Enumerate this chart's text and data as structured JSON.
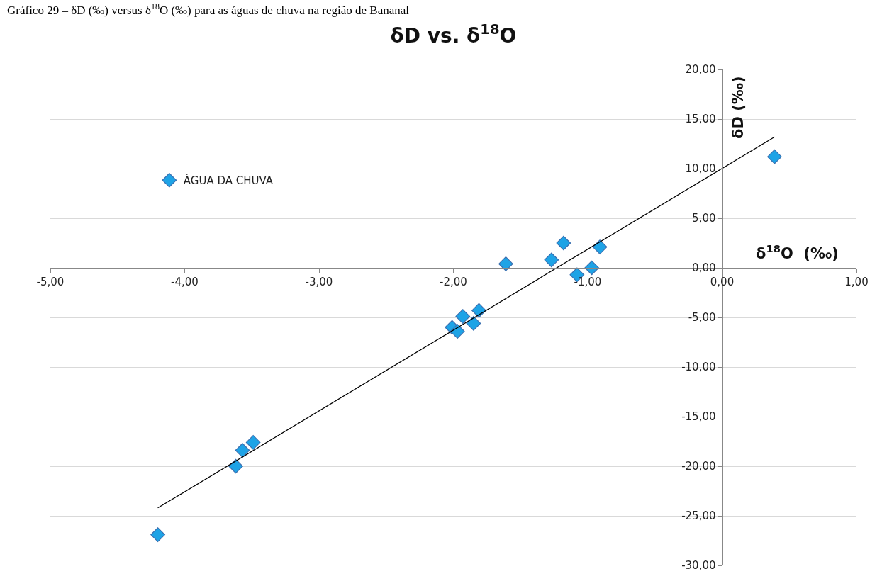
{
  "chart_data": {
    "type": "scatter",
    "title": "δD vs. δ$^{18}$O",
    "subtitle": "Gráfico 29 – δD (‰) versus δ$^{18}$O (‰) para as águas de chuva na região de Bananal",
    "xlabel": "δ$^{18}$O  (‰)",
    "ylabel": "δD (‰)",
    "xlim": [
      -5,
      1
    ],
    "xticks": [
      {
        "value": -5,
        "label": "-5,00"
      },
      {
        "value": -4,
        "label": "-4,00"
      },
      {
        "value": -3,
        "label": "-3,00"
      },
      {
        "value": -2,
        "label": "-2,00"
      },
      {
        "value": -1,
        "label": "-1,00"
      },
      {
        "value": 0,
        "label": "0,00"
      },
      {
        "value": 1,
        "label": "1,00"
      }
    ],
    "ylim": [
      -30,
      20
    ],
    "yticks": [
      {
        "value": -30,
        "label": "-30,00"
      },
      {
        "value": -25,
        "label": "-25,00"
      },
      {
        "value": -20,
        "label": "-20,00"
      },
      {
        "value": -15,
        "label": "-15,00"
      },
      {
        "value": -10,
        "label": "-10,00"
      },
      {
        "value": -5,
        "label": "-5,00"
      },
      {
        "value": 0,
        "label": "0,00"
      },
      {
        "value": 5,
        "label": "5,00"
      },
      {
        "value": 10,
        "label": "10,00"
      },
      {
        "value": 15,
        "label": "15,00"
      },
      {
        "value": 20,
        "label": "20,00"
      }
    ],
    "grid": "y",
    "legend": "top left",
    "marker": "diamond",
    "series": [
      {
        "name": "ÁGUA DA CHUVA",
        "color": "#1ea3e6",
        "x": [
          -4.2,
          -3.62,
          -3.57,
          -3.49,
          -2.01,
          -1.97,
          -1.93,
          -1.85,
          -1.81,
          -1.61,
          -1.27,
          -1.18,
          -1.08,
          -0.97,
          -0.91,
          0.39
        ],
        "values": [
          -26.9,
          -20.0,
          -18.4,
          -17.6,
          -6.0,
          -6.4,
          -4.9,
          -5.6,
          -4.3,
          0.4,
          0.8,
          2.5,
          -0.7,
          0.0,
          2.1,
          11.2
        ]
      },
      {
        "type": "line",
        "marker": "none",
        "color": "#000000",
        "x": [
          -4.2,
          0.39
        ],
        "values": [
          -24.2,
          13.2
        ]
      }
    ]
  }
}
